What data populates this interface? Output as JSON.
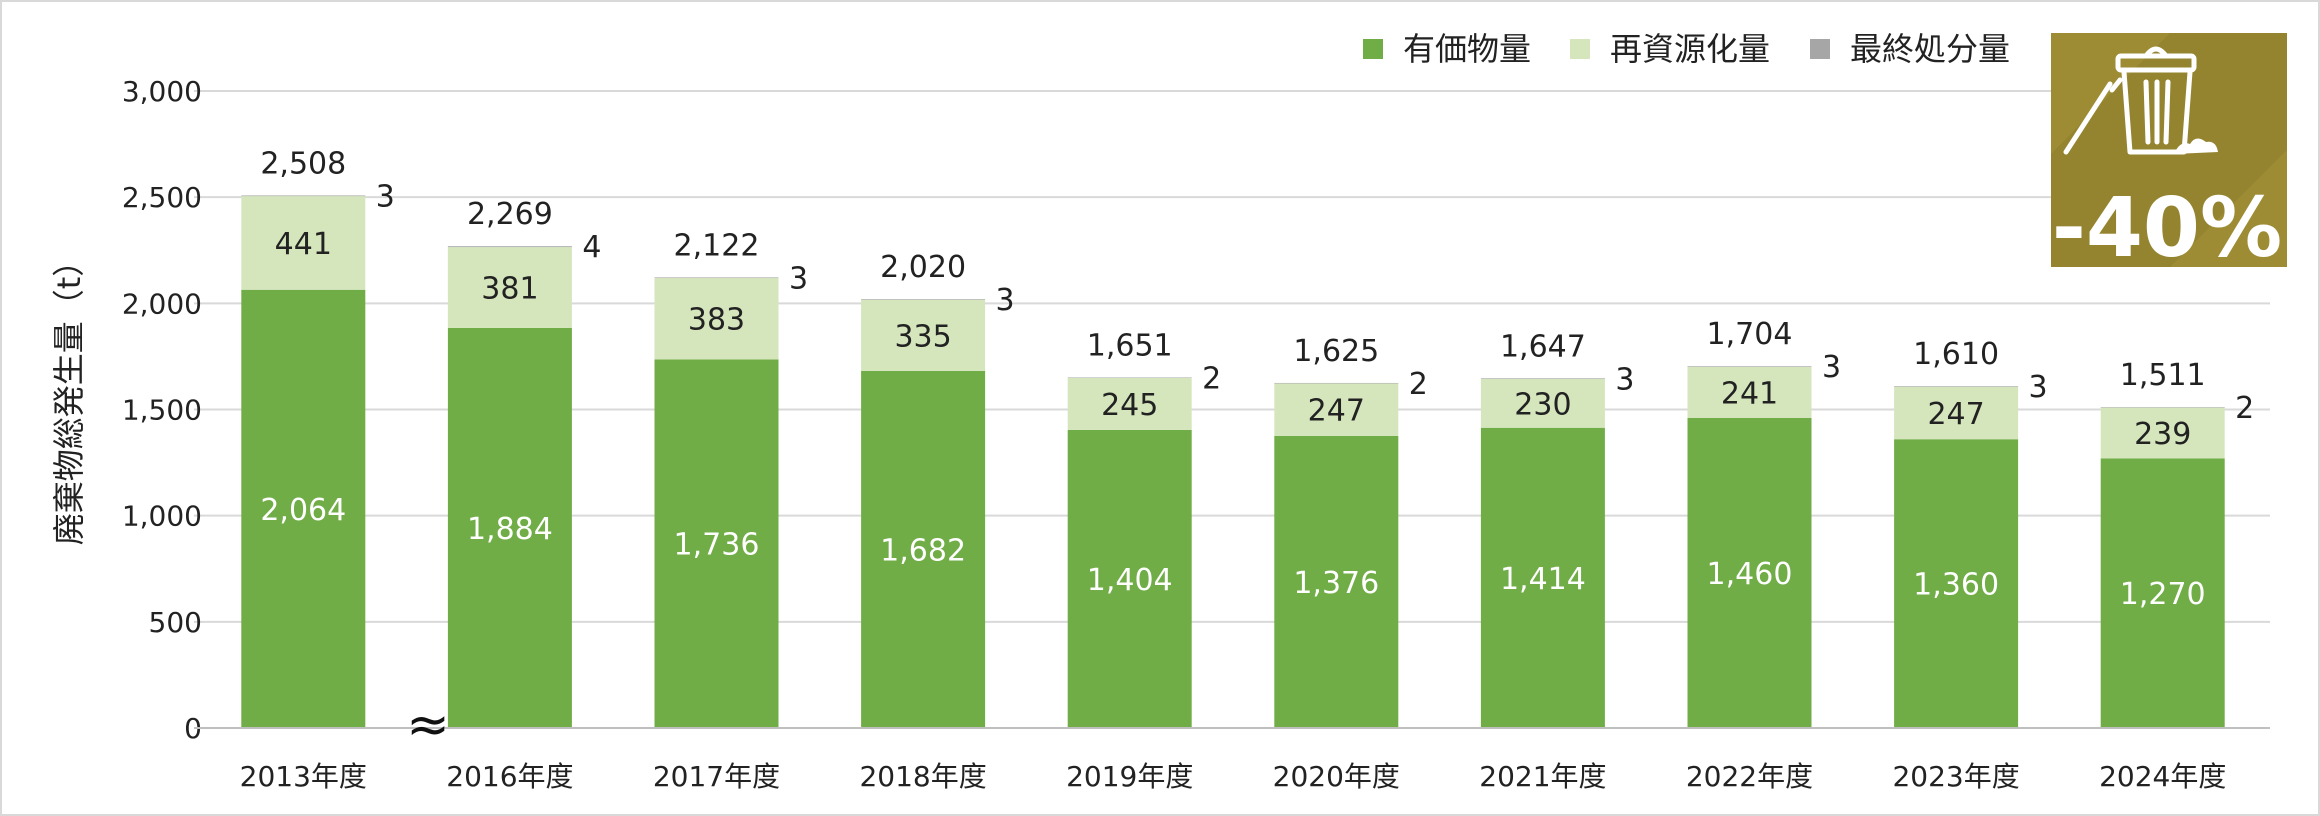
{
  "chart_data": {
    "type": "bar",
    "stacked": true,
    "title": "",
    "xlabel": "",
    "ylabel": "廃棄物総発生量（t）",
    "ylim": [
      0,
      3000
    ],
    "yticks": [
      0,
      500,
      1000,
      1500,
      2000,
      2500,
      3000
    ],
    "ytick_labels": [
      "0",
      "500",
      "1,000",
      "1,500",
      "2,000",
      "2,500",
      "3,000"
    ],
    "grid": true,
    "legend_position": "top-right",
    "categories": [
      "2013年度",
      "2016年度",
      "2017年度",
      "2018年度",
      "2019年度",
      "2020年度",
      "2021年度",
      "2022年度",
      "2023年度",
      "2024年度"
    ],
    "series": [
      {
        "name": "有価物量",
        "color": "#70ad47",
        "values": [
          2064,
          1884,
          1736,
          1682,
          1404,
          1376,
          1414,
          1460,
          1360,
          1270
        ]
      },
      {
        "name": "再資源化量",
        "color": "#d5e6bd",
        "values": [
          441,
          381,
          383,
          335,
          245,
          247,
          230,
          241,
          247,
          239
        ]
      },
      {
        "name": "最終処分量",
        "color": "#a6a6a6",
        "values": [
          3,
          4,
          3,
          3,
          2,
          2,
          3,
          3,
          3,
          2
        ]
      }
    ],
    "totals": [
      2508,
      2269,
      2122,
      2020,
      1651,
      1625,
      1647,
      1704,
      1610,
      1511
    ],
    "axis_break_symbol": "≈",
    "badge": {
      "text": "-40%",
      "background": "#9e8c34",
      "icon": "trash-bin-icon"
    }
  }
}
